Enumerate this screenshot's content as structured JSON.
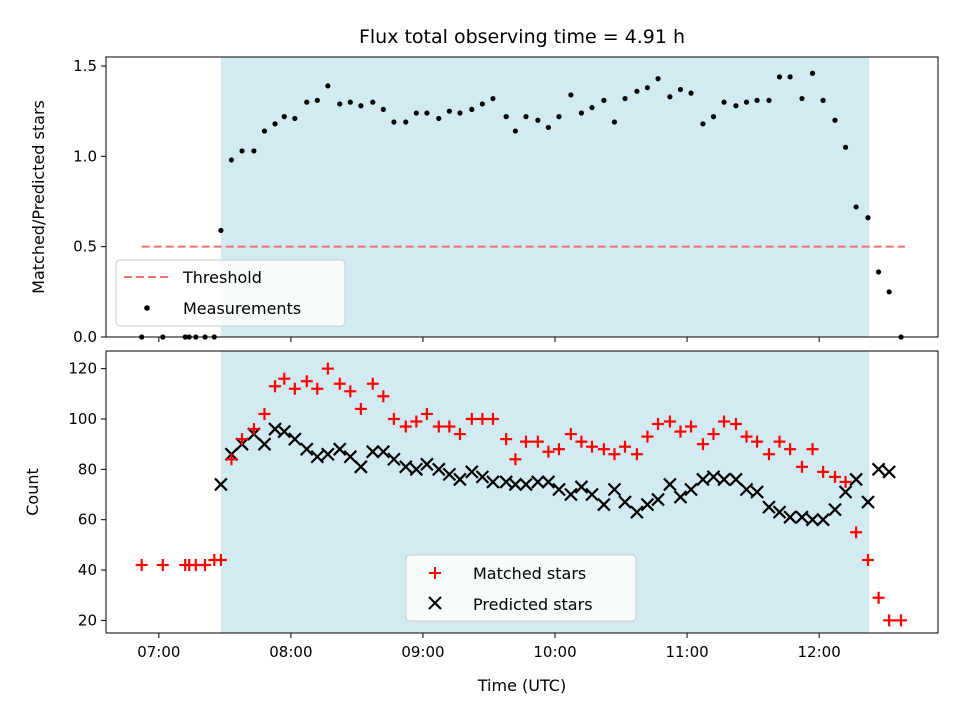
{
  "chart_data": [
    {
      "type": "scatter",
      "title": "Flux total observing time = 4.91 h",
      "ylabel": "Matched/Predicted stars",
      "xlabel": "",
      "xlim": [
        6.6,
        12.9
      ],
      "ylim": [
        0,
        1.55
      ],
      "yticks": [
        0.0,
        0.5,
        1.0,
        1.5
      ],
      "ytick_labels": [
        "0.0",
        "0.5",
        "1.0",
        "1.5"
      ],
      "shaded_span": [
        7.47,
        12.38
      ],
      "threshold": {
        "name": "Threshold",
        "value": 0.5,
        "x_range": [
          6.87,
          12.65
        ],
        "color": "#f07070"
      },
      "legend": {
        "position": "lower-left",
        "entries": [
          "Threshold",
          "Measurements"
        ]
      },
      "series": [
        {
          "name": "Measurements",
          "color": "#000000",
          "x": [
            6.87,
            7.03,
            7.2,
            7.23,
            7.28,
            7.35,
            7.42,
            7.47,
            7.55,
            7.63,
            7.72,
            7.8,
            7.88,
            7.95,
            8.03,
            8.12,
            8.2,
            8.28,
            8.37,
            8.45,
            8.53,
            8.62,
            8.7,
            8.78,
            8.87,
            8.95,
            9.03,
            9.12,
            9.2,
            9.28,
            9.37,
            9.45,
            9.53,
            9.63,
            9.7,
            9.78,
            9.87,
            9.95,
            10.03,
            10.12,
            10.2,
            10.28,
            10.37,
            10.45,
            10.53,
            10.62,
            10.7,
            10.78,
            10.87,
            10.95,
            11.03,
            11.12,
            11.2,
            11.28,
            11.37,
            11.45,
            11.53,
            11.62,
            11.7,
            11.78,
            11.87,
            11.95,
            12.03,
            12.12,
            12.2,
            12.28,
            12.37,
            12.45,
            12.53,
            12.62
          ],
          "y": [
            0,
            0,
            0,
            0,
            0,
            0,
            0,
            0.59,
            0.98,
            1.03,
            1.03,
            1.14,
            1.18,
            1.22,
            1.21,
            1.3,
            1.31,
            1.39,
            1.29,
            1.3,
            1.28,
            1.3,
            1.26,
            1.19,
            1.19,
            1.24,
            1.24,
            1.21,
            1.25,
            1.24,
            1.26,
            1.29,
            1.32,
            1.22,
            1.14,
            1.22,
            1.2,
            1.16,
            1.22,
            1.34,
            1.24,
            1.27,
            1.31,
            1.19,
            1.32,
            1.36,
            1.38,
            1.43,
            1.33,
            1.37,
            1.35,
            1.18,
            1.22,
            1.3,
            1.28,
            1.3,
            1.31,
            1.31,
            1.44,
            1.44,
            1.32,
            1.46,
            1.31,
            1.2,
            1.05,
            0.72,
            0.66,
            0.36,
            0.25,
            0
          ]
        }
      ]
    },
    {
      "type": "scatter",
      "title": "",
      "ylabel": "Count",
      "xlabel": "Time (UTC)",
      "xlim": [
        6.6,
        12.9
      ],
      "ylim": [
        15,
        127
      ],
      "yticks": [
        20,
        40,
        60,
        80,
        100,
        120
      ],
      "ytick_labels": [
        "20",
        "40",
        "60",
        "80",
        "100",
        "120"
      ],
      "xticks": [
        7,
        8,
        9,
        10,
        11,
        12
      ],
      "xtick_labels": [
        "07:00",
        "08:00",
        "09:00",
        "10:00",
        "11:00",
        "12:00"
      ],
      "shaded_span": [
        7.47,
        12.38
      ],
      "legend": {
        "position": "lower-center",
        "entries": [
          "Matched stars",
          "Predicted stars"
        ]
      },
      "series": [
        {
          "name": "Matched stars",
          "marker": "plus",
          "color": "#ff0000",
          "x": [
            6.87,
            7.03,
            7.2,
            7.23,
            7.28,
            7.35,
            7.42,
            7.47,
            7.55,
            7.63,
            7.72,
            7.8,
            7.88,
            7.95,
            8.03,
            8.12,
            8.2,
            8.28,
            8.37,
            8.45,
            8.53,
            8.62,
            8.7,
            8.78,
            8.87,
            8.95,
            9.03,
            9.12,
            9.2,
            9.28,
            9.37,
            9.45,
            9.53,
            9.63,
            9.7,
            9.78,
            9.87,
            9.95,
            10.03,
            10.12,
            10.2,
            10.28,
            10.37,
            10.45,
            10.53,
            10.62,
            10.7,
            10.78,
            10.87,
            10.95,
            11.03,
            11.12,
            11.2,
            11.28,
            11.37,
            11.45,
            11.53,
            11.62,
            11.7,
            11.78,
            11.87,
            11.95,
            12.03,
            12.12,
            12.2,
            12.28,
            12.37,
            12.45,
            12.53,
            12.62
          ],
          "y": [
            42,
            42,
            42,
            42,
            42,
            42,
            44,
            44,
            84,
            92,
            96,
            102,
            113,
            116,
            112,
            115,
            112,
            120,
            114,
            111,
            104,
            114,
            109,
            100,
            97,
            99,
            102,
            97,
            97,
            94,
            100,
            100,
            100,
            92,
            84,
            91,
            91,
            87,
            88,
            94,
            91,
            89,
            88,
            86,
            89,
            86,
            93,
            98,
            99,
            95,
            97,
            90,
            94,
            99,
            98,
            93,
            91,
            86,
            91,
            88,
            81,
            88,
            79,
            77,
            75,
            55,
            44,
            29,
            20,
            20
          ]
        },
        {
          "name": "Predicted stars",
          "marker": "x",
          "color": "#000000",
          "x": [
            7.47,
            7.55,
            7.63,
            7.72,
            7.8,
            7.88,
            7.95,
            8.03,
            8.12,
            8.2,
            8.28,
            8.37,
            8.45,
            8.53,
            8.62,
            8.7,
            8.78,
            8.87,
            8.95,
            9.03,
            9.12,
            9.2,
            9.28,
            9.37,
            9.45,
            9.53,
            9.63,
            9.7,
            9.78,
            9.87,
            9.95,
            10.03,
            10.12,
            10.2,
            10.28,
            10.37,
            10.45,
            10.53,
            10.62,
            10.7,
            10.78,
            10.87,
            10.95,
            11.03,
            11.12,
            11.2,
            11.28,
            11.37,
            11.45,
            11.53,
            11.62,
            11.7,
            11.78,
            11.87,
            11.95,
            12.03,
            12.12,
            12.2,
            12.28,
            12.37,
            12.45,
            12.53
          ],
          "y": [
            74,
            86,
            90,
            94,
            90,
            96,
            95,
            92,
            88,
            85,
            86,
            88,
            85,
            81,
            87,
            87,
            84,
            81,
            80,
            82,
            80,
            78,
            76,
            79,
            77,
            75,
            75,
            74,
            74,
            75,
            75,
            72,
            70,
            73,
            70,
            66,
            72,
            67,
            63,
            66,
            68,
            74,
            69,
            72,
            76,
            77,
            76,
            76,
            72,
            71,
            65,
            63,
            61,
            61,
            60,
            60,
            64,
            71,
            76,
            67,
            80,
            79
          ]
        }
      ]
    }
  ]
}
